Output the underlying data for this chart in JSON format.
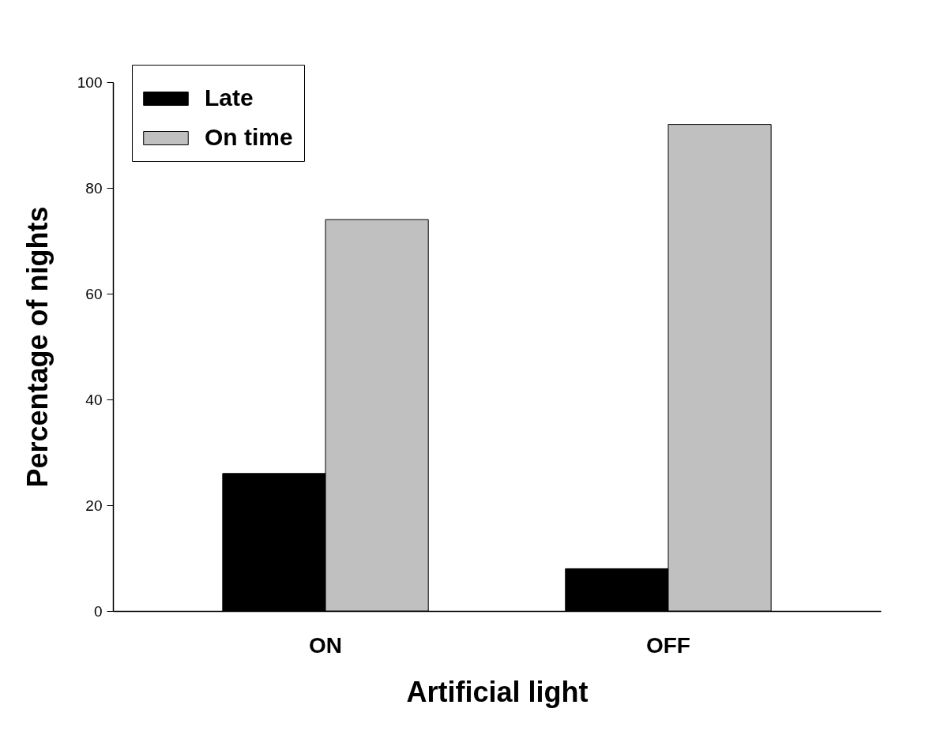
{
  "chart_data": {
    "type": "bar",
    "xlabel": "Artificial light",
    "ylabel": "Percentage of nights",
    "categories": [
      "ON",
      "OFF"
    ],
    "series": [
      {
        "name": "Late",
        "color": "#000000",
        "values": [
          26,
          8
        ]
      },
      {
        "name": "On time",
        "color": "#c0c0c0",
        "values": [
          74,
          92
        ]
      }
    ],
    "ylim": [
      0,
      100
    ],
    "yticks": [
      0,
      20,
      40,
      60,
      80,
      100
    ],
    "legend": "top left",
    "grid": false
  }
}
